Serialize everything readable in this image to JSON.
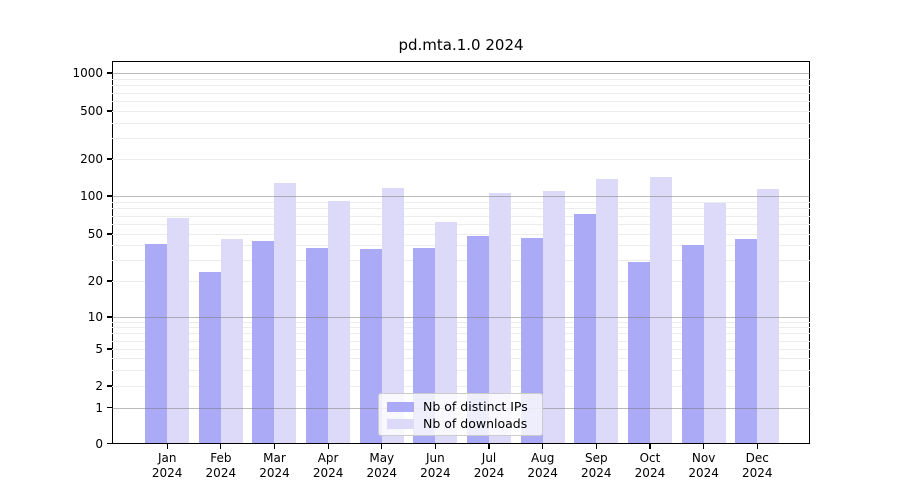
{
  "figure": {
    "title": "pd.mta.1.0 2024"
  },
  "chart_data": {
    "type": "bar",
    "title": "pd.mta.1.0 2024",
    "scale": "symlog",
    "grid": true,
    "legend_position": "lower center",
    "x_year": "2024",
    "categories": [
      "Jan",
      "Feb",
      "Mar",
      "Apr",
      "May",
      "Jun",
      "Jul",
      "Aug",
      "Sep",
      "Oct",
      "Nov",
      "Dec"
    ],
    "series": [
      {
        "name": "Nb of distinct IPs",
        "color": "#abaaf6",
        "values": [
          41,
          24,
          44,
          38,
          37,
          38,
          48,
          46,
          72,
          29,
          40,
          45
        ]
      },
      {
        "name": "Nb of downloads",
        "color": "#dcdaf8",
        "values": [
          67,
          45,
          127,
          92,
          117,
          62,
          106,
          110,
          138,
          143,
          88,
          115
        ]
      }
    ],
    "yticks": [
      0,
      1,
      2,
      5,
      10,
      20,
      50,
      100,
      200,
      500,
      1000
    ],
    "ylim": [
      0,
      1200
    ]
  }
}
